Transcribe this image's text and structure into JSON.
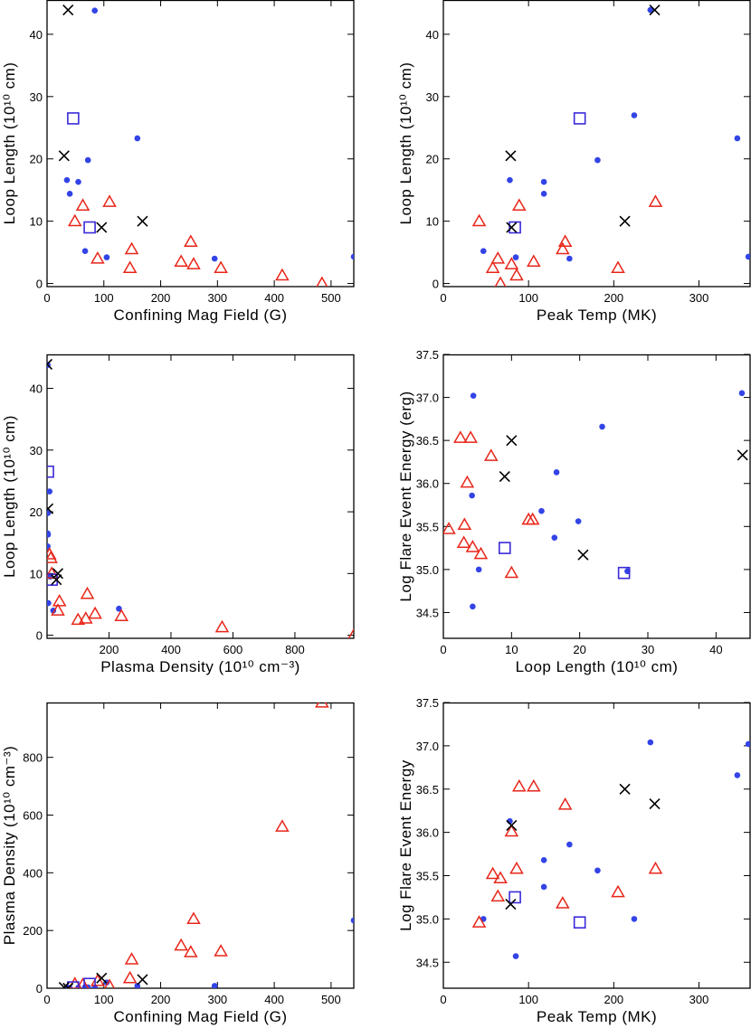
{
  "colors": {
    "dot": "#3344e6",
    "triangle": "#e8261a",
    "square": "#3a2ad8",
    "cross": "#000000",
    "axis": "#000000"
  },
  "chart_data": [
    {
      "type": "scatter",
      "title": "",
      "xlabel": "Confining Mag Field (G)",
      "ylabel": "Loop Length (10¹⁰ cm)",
      "xlim": [
        0,
        540
      ],
      "ylim": [
        -0.5,
        45.5
      ],
      "xticks": [
        0,
        100,
        200,
        300,
        400,
        500
      ],
      "xtick_labels": [
        "0",
        "100",
        "200",
        "300",
        "400",
        "500"
      ],
      "yticks": [
        0,
        10,
        20,
        30,
        40
      ],
      "ytick_labels": [
        "0",
        "10",
        "20",
        "30",
        "40"
      ],
      "series": [
        {
          "name": "dots",
          "marker": "dot",
          "x": [
            84,
            159,
            72,
            35,
            55,
            40,
            67,
            105,
            295,
            540
          ],
          "y": [
            43.8,
            23.3,
            19.8,
            16.6,
            16.3,
            14.4,
            5.2,
            4.2,
            4.0,
            4.3
          ]
        },
        {
          "name": "triangles",
          "marker": "triangle",
          "x": [
            110,
            63,
            49,
            149,
            253,
            89,
            146,
            236,
            258,
            306,
            414,
            484
          ],
          "y": [
            13.1,
            12.5,
            10.0,
            5.5,
            6.7,
            4.0,
            2.5,
            3.5,
            3.1,
            2.5,
            1.3,
            0.0
          ]
        },
        {
          "name": "squares",
          "marker": "square",
          "x": [
            46,
            75
          ],
          "y": [
            26.5,
            9.0
          ]
        },
        {
          "name": "crosses",
          "marker": "cross",
          "x": [
            37,
            30,
            96,
            168
          ],
          "y": [
            43.9,
            20.5,
            9.0,
            10.0
          ]
        }
      ]
    },
    {
      "type": "scatter",
      "title": "",
      "xlabel": "Peak Temp (MK)",
      "ylabel": "Loop Length (10¹⁰ cm)",
      "xlim": [
        0,
        360
      ],
      "ylim": [
        -0.5,
        45.5
      ],
      "xticks": [
        0,
        100,
        200,
        300
      ],
      "xtick_labels": [
        "0",
        "100",
        "200",
        "300"
      ],
      "yticks": [
        0,
        10,
        20,
        30,
        40
      ],
      "ytick_labels": [
        "0",
        "10",
        "20",
        "30",
        "40"
      ],
      "series": [
        {
          "name": "dots",
          "marker": "dot",
          "x": [
            243,
            345,
            224,
            181,
            78,
            118,
            118,
            47,
            85,
            148,
            358
          ],
          "y": [
            43.9,
            23.3,
            27.0,
            19.8,
            16.6,
            16.3,
            14.4,
            5.2,
            4.2,
            4.0,
            4.3
          ]
        },
        {
          "name": "triangles",
          "marker": "triangle",
          "x": [
            249,
            42,
            89,
            143,
            140,
            64,
            80,
            106,
            58,
            67,
            86,
            205
          ],
          "y": [
            13.1,
            10.0,
            12.5,
            6.7,
            5.5,
            4.0,
            3.1,
            3.5,
            2.5,
            0.0,
            1.3,
            2.5
          ]
        },
        {
          "name": "squares",
          "marker": "square",
          "x": [
            160,
            84
          ],
          "y": [
            26.5,
            9.0
          ]
        },
        {
          "name": "crosses",
          "marker": "cross",
          "x": [
            248,
            79,
            80,
            213
          ],
          "y": [
            43.9,
            20.5,
            9.0,
            10.0
          ]
        }
      ]
    },
    {
      "type": "scatter",
      "title": "",
      "xlabel": "Plasma Density (10¹⁰ cm⁻³)",
      "ylabel": "Loop Length (10¹⁰ cm)",
      "xlim": [
        0,
        990
      ],
      "ylim": [
        -0.5,
        45.5
      ],
      "xticks": [
        200,
        400,
        600,
        800
      ],
      "xtick_labels": [
        "200",
        "400",
        "600",
        "800"
      ],
      "yticks": [
        0,
        10,
        20,
        30,
        40
      ],
      "ytick_labels": [
        "0",
        "10",
        "20",
        "30",
        "40"
      ],
      "series": [
        {
          "name": "dots",
          "marker": "dot",
          "x": [
            2,
            8,
            3,
            2,
            3,
            2,
            4,
            20,
            232,
            10
          ],
          "y": [
            43.8,
            23.3,
            19.8,
            16.5,
            16.3,
            14.4,
            5.2,
            4.0,
            4.3,
            9.5
          ]
        },
        {
          "name": "triangles",
          "marker": "triangle",
          "x": [
            8,
            12,
            15,
            130,
            40,
            35,
            100,
            125,
            155,
            240,
            565,
            990
          ],
          "y": [
            13.1,
            12.5,
            10.0,
            6.7,
            5.5,
            4.0,
            2.5,
            2.7,
            3.5,
            3.1,
            1.3,
            0.0
          ]
        },
        {
          "name": "squares",
          "marker": "square",
          "x": [
            3,
            15
          ],
          "y": [
            26.5,
            9.0
          ]
        },
        {
          "name": "crosses",
          "marker": "cross",
          "x": [
            0,
            3,
            30,
            35
          ],
          "y": [
            43.9,
            20.5,
            9.0,
            10.0
          ]
        }
      ]
    },
    {
      "type": "scatter",
      "title": "",
      "xlabel": "Loop Length (10¹⁰ cm)",
      "ylabel": "Log Flare Event Energy (erg)",
      "xlim": [
        0,
        45
      ],
      "ylim": [
        34.2,
        37.5
      ],
      "xticks": [
        0,
        10,
        20,
        30,
        40
      ],
      "xtick_labels": [
        "0",
        "10",
        "20",
        "30",
        "40"
      ],
      "yticks": [
        34.5,
        35.0,
        35.5,
        36.0,
        36.5,
        37.0,
        37.5
      ],
      "ytick_labels": [
        "34.5",
        "35.0",
        "35.5",
        "36.0",
        "36.5",
        "37.0",
        "37.5"
      ],
      "series": [
        {
          "name": "dots",
          "marker": "dot",
          "x": [
            4.4,
            43.8,
            23.3,
            4.2,
            16.6,
            14.4,
            19.8,
            16.3,
            5.2,
            27.0,
            4.3
          ],
          "y": [
            37.02,
            37.05,
            36.66,
            35.86,
            36.13,
            35.68,
            35.56,
            35.37,
            35.0,
            34.98,
            34.57
          ]
        },
        {
          "name": "triangles",
          "marker": "triangle",
          "x": [
            2.5,
            4.0,
            7.0,
            3.5,
            0.8,
            3.1,
            13.1,
            12.5,
            4.3,
            5.5,
            10.0,
            3.0
          ],
          "y": [
            36.53,
            36.53,
            36.32,
            36.01,
            35.47,
            35.52,
            35.58,
            35.58,
            35.26,
            35.18,
            34.96,
            35.31
          ]
        },
        {
          "name": "squares",
          "marker": "square",
          "x": [
            9.0,
            26.5
          ],
          "y": [
            35.25,
            34.96
          ]
        },
        {
          "name": "crosses",
          "marker": "cross",
          "x": [
            10.0,
            9.0,
            43.9,
            20.5
          ],
          "y": [
            36.5,
            36.08,
            36.33,
            35.17
          ]
        }
      ]
    },
    {
      "type": "scatter",
      "title": "",
      "xlabel": "Confining Mag Field (G)",
      "ylabel": "Plasma Density (10¹⁰ cm⁻³)",
      "xlim": [
        0,
        540
      ],
      "ylim": [
        0,
        990
      ],
      "xticks": [
        0,
        100,
        200,
        300,
        400,
        500
      ],
      "xtick_labels": [
        "0",
        "100",
        "200",
        "300",
        "400",
        "500"
      ],
      "yticks": [
        0,
        200,
        400,
        600,
        800
      ],
      "ytick_labels": [
        "0",
        "200",
        "400",
        "600",
        "800"
      ],
      "series": [
        {
          "name": "dots",
          "marker": "dot",
          "x": [
            540,
            295,
            105,
            84,
            72,
            55,
            40,
            35,
            67,
            159
          ],
          "y": [
            235,
            8,
            20,
            3,
            3,
            2,
            1,
            2,
            4,
            8
          ]
        },
        {
          "name": "triangles",
          "marker": "triangle",
          "x": [
            484,
            414,
            258,
            236,
            306,
            253,
            149,
            146,
            89,
            110,
            63,
            49
          ],
          "y": [
            990,
            560,
            240,
            148,
            128,
            125,
            100,
            35,
            25,
            8,
            12,
            15
          ]
        },
        {
          "name": "squares",
          "marker": "square",
          "x": [
            46,
            75
          ],
          "y": [
            3,
            15
          ]
        },
        {
          "name": "crosses",
          "marker": "cross",
          "x": [
            168,
            96,
            37,
            30
          ],
          "y": [
            30,
            35,
            0,
            3
          ]
        }
      ]
    },
    {
      "type": "scatter",
      "title": "",
      "xlabel": "Peak Temp (MK)",
      "ylabel": "Log Flare Event Energy",
      "xlim": [
        0,
        360
      ],
      "ylim": [
        34.2,
        37.5
      ],
      "xticks": [
        0,
        100,
        200,
        300
      ],
      "xtick_labels": [
        "0",
        "100",
        "200",
        "300"
      ],
      "yticks": [
        34.5,
        35.0,
        35.5,
        36.0,
        36.5,
        37.0,
        37.5
      ],
      "ytick_labels": [
        "34.5",
        "35.0",
        "35.5",
        "36.0",
        "36.5",
        "37.0",
        "37.5"
      ],
      "series": [
        {
          "name": "dots",
          "marker": "dot",
          "x": [
            243,
            358,
            345,
            78,
            118,
            148,
            181,
            118,
            47,
            224,
            85
          ],
          "y": [
            37.04,
            37.02,
            36.66,
            36.13,
            35.68,
            35.86,
            35.56,
            35.37,
            35.0,
            35.0,
            34.57
          ]
        },
        {
          "name": "triangles",
          "marker": "triangle",
          "x": [
            89,
            106,
            143,
            80,
            58,
            67,
            86,
            64,
            140,
            205,
            249,
            42
          ],
          "y": [
            36.53,
            36.53,
            36.32,
            36.01,
            35.52,
            35.47,
            35.58,
            35.26,
            35.18,
            35.31,
            35.58,
            34.96
          ]
        },
        {
          "name": "squares",
          "marker": "square",
          "x": [
            84,
            160
          ],
          "y": [
            35.25,
            34.96
          ]
        },
        {
          "name": "crosses",
          "marker": "cross",
          "x": [
            213,
            248,
            80,
            79
          ],
          "y": [
            36.5,
            36.33,
            36.08,
            35.17
          ]
        }
      ]
    }
  ]
}
